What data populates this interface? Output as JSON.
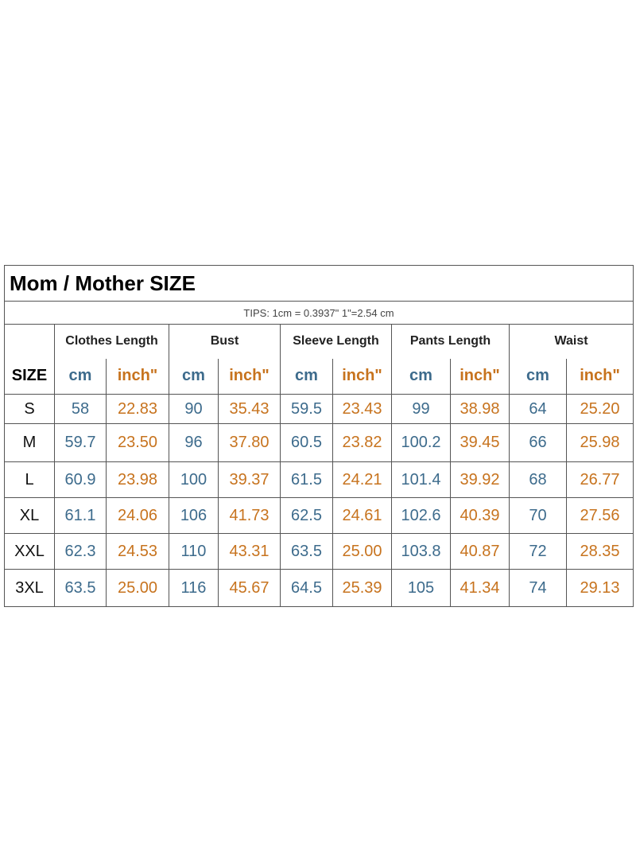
{
  "title": "Mom / Mother  SIZE",
  "tips": "TIPS: 1cm = 0.3937\"    1\"=2.54 cm",
  "size_header": "SIZE",
  "units": {
    "cm": "cm",
    "inch": "inch\""
  },
  "groups": [
    "Clothes Length",
    "Bust",
    "Sleeve Length",
    "Pants Length",
    "Waist"
  ],
  "rows": [
    {
      "size": "S",
      "values": [
        "58",
        "22.83",
        "90",
        "35.43",
        "59.5",
        "23.43",
        "99",
        "38.98",
        "64",
        "25.20"
      ]
    },
    {
      "size": "M",
      "values": [
        "59.7",
        "23.50",
        "96",
        "37.80",
        "60.5",
        "23.82",
        "100.2",
        "39.45",
        "66",
        "25.98"
      ]
    },
    {
      "size": "L",
      "values": [
        "60.9",
        "23.98",
        "100",
        "39.37",
        "61.5",
        "24.21",
        "101.4",
        "39.92",
        "68",
        "26.77"
      ]
    },
    {
      "size": "XL",
      "values": [
        "61.1",
        "24.06",
        "106",
        "41.73",
        "62.5",
        "24.61",
        "102.6",
        "40.39",
        "70",
        "27.56"
      ]
    },
    {
      "size": "XXL",
      "values": [
        "62.3",
        "24.53",
        "110",
        "43.31",
        "63.5",
        "25.00",
        "103.8",
        "40.87",
        "72",
        "28.35"
      ]
    },
    {
      "size": "3XL",
      "values": [
        "63.5",
        "25.00",
        "116",
        "45.67",
        "64.5",
        "25.39",
        "105",
        "41.34",
        "74",
        "29.13"
      ]
    }
  ]
}
